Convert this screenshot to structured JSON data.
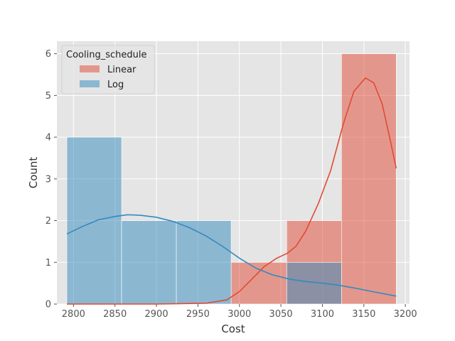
{
  "chart_data": {
    "type": "histogram",
    "title": "",
    "xlabel": "Cost",
    "ylabel": "Count",
    "xlim": [
      2780,
      3205
    ],
    "ylim": [
      0,
      6.3
    ],
    "xticks": [
      2800,
      2850,
      2900,
      2950,
      3000,
      3050,
      3100,
      3150,
      3200
    ],
    "yticks": [
      0,
      1,
      2,
      3,
      4,
      5,
      6
    ],
    "grid": true,
    "legend": {
      "title": "Cooling_schedule",
      "position": "top-left"
    },
    "series": [
      {
        "name": "Linear",
        "color": "#E24A33",
        "bins": [
          {
            "x0": 2792,
            "x1": 2858,
            "count": 0
          },
          {
            "x0": 2858,
            "x1": 2924,
            "count": 0
          },
          {
            "x0": 2924,
            "x1": 2990,
            "count": 0
          },
          {
            "x0": 2990,
            "x1": 3057,
            "count": 1
          },
          {
            "x0": 3057,
            "x1": 3123,
            "count": 2
          },
          {
            "x0": 3123,
            "x1": 3189,
            "count": 6
          }
        ],
        "kde": [
          [
            2792,
            0.0
          ],
          [
            2900,
            0.0
          ],
          [
            2960,
            0.02
          ],
          [
            2985,
            0.1
          ],
          [
            3000,
            0.3
          ],
          [
            3015,
            0.6
          ],
          [
            3030,
            0.9
          ],
          [
            3045,
            1.1
          ],
          [
            3058,
            1.22
          ],
          [
            3068,
            1.38
          ],
          [
            3080,
            1.75
          ],
          [
            3095,
            2.4
          ],
          [
            3110,
            3.2
          ],
          [
            3125,
            4.3
          ],
          [
            3138,
            5.1
          ],
          [
            3152,
            5.42
          ],
          [
            3162,
            5.3
          ],
          [
            3172,
            4.8
          ],
          [
            3181,
            4.0
          ],
          [
            3189,
            3.25
          ]
        ]
      },
      {
        "name": "Log",
        "color": "#348ABD",
        "bins": [
          {
            "x0": 2792,
            "x1": 2858,
            "count": 4
          },
          {
            "x0": 2858,
            "x1": 2924,
            "count": 2
          },
          {
            "x0": 2924,
            "x1": 2990,
            "count": 2
          },
          {
            "x0": 2990,
            "x1": 3057,
            "count": 0
          },
          {
            "x0": 3057,
            "x1": 3123,
            "count": 1
          },
          {
            "x0": 3123,
            "x1": 3189,
            "count": 0
          }
        ],
        "kde": [
          [
            2792,
            1.68
          ],
          [
            2810,
            1.85
          ],
          [
            2830,
            2.02
          ],
          [
            2850,
            2.1
          ],
          [
            2865,
            2.14
          ],
          [
            2880,
            2.13
          ],
          [
            2900,
            2.08
          ],
          [
            2920,
            1.98
          ],
          [
            2940,
            1.83
          ],
          [
            2960,
            1.63
          ],
          [
            2980,
            1.38
          ],
          [
            3000,
            1.1
          ],
          [
            3020,
            0.86
          ],
          [
            3040,
            0.7
          ],
          [
            3060,
            0.6
          ],
          [
            3080,
            0.54
          ],
          [
            3100,
            0.5
          ],
          [
            3120,
            0.45
          ],
          [
            3140,
            0.38
          ],
          [
            3160,
            0.3
          ],
          [
            3189,
            0.19
          ]
        ]
      }
    ]
  }
}
